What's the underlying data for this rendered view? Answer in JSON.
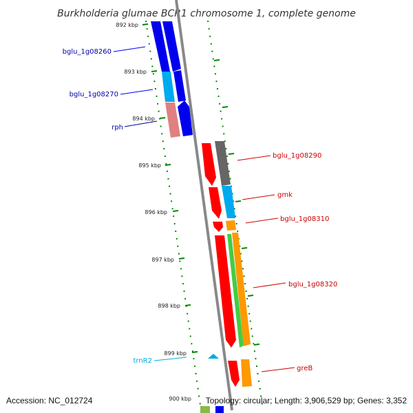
{
  "title": "Burkholderia glumae BCR1 chromosome 1, complete genome",
  "accession_text": "Accession: NC_012724",
  "topology_text": "Topology: circular; Length: 3,906,529 bp; Genes: 3,352",
  "ticks": [
    "892 kbp",
    "893 kbp",
    "894 kbp",
    "895 kbp",
    "896 kbp",
    "897 kbp",
    "898 kbp",
    "899 kbp",
    "900 kbp"
  ],
  "genes": [
    {
      "name": "bglu_1g08260",
      "color": "#0000ee"
    },
    {
      "name": "bglu_1g08270",
      "color": "#00aaee"
    },
    {
      "name": "rph",
      "color": "#0000aa"
    },
    {
      "name": "bglu_1g08290",
      "color": "#cc0000"
    },
    {
      "name": "gmk",
      "color": "#cc0000"
    },
    {
      "name": "bglu_1g08310",
      "color": "#cc0000"
    },
    {
      "name": "bglu_1g08320",
      "color": "#cc0000"
    },
    {
      "name": "trnR2",
      "color": "#00aadd"
    },
    {
      "name": "greB",
      "color": "#cc0000"
    }
  ],
  "colors": {
    "ruler": "#008800",
    "backbone": "#888888",
    "cds_forward": "#0000ee",
    "cds_reverse": "#ff0000",
    "fill_cyan": "#00aaee",
    "fill_pink": "#e08080",
    "fill_gray": "#666666",
    "fill_orange": "#ff9900",
    "fill_green": "#44cc44"
  }
}
